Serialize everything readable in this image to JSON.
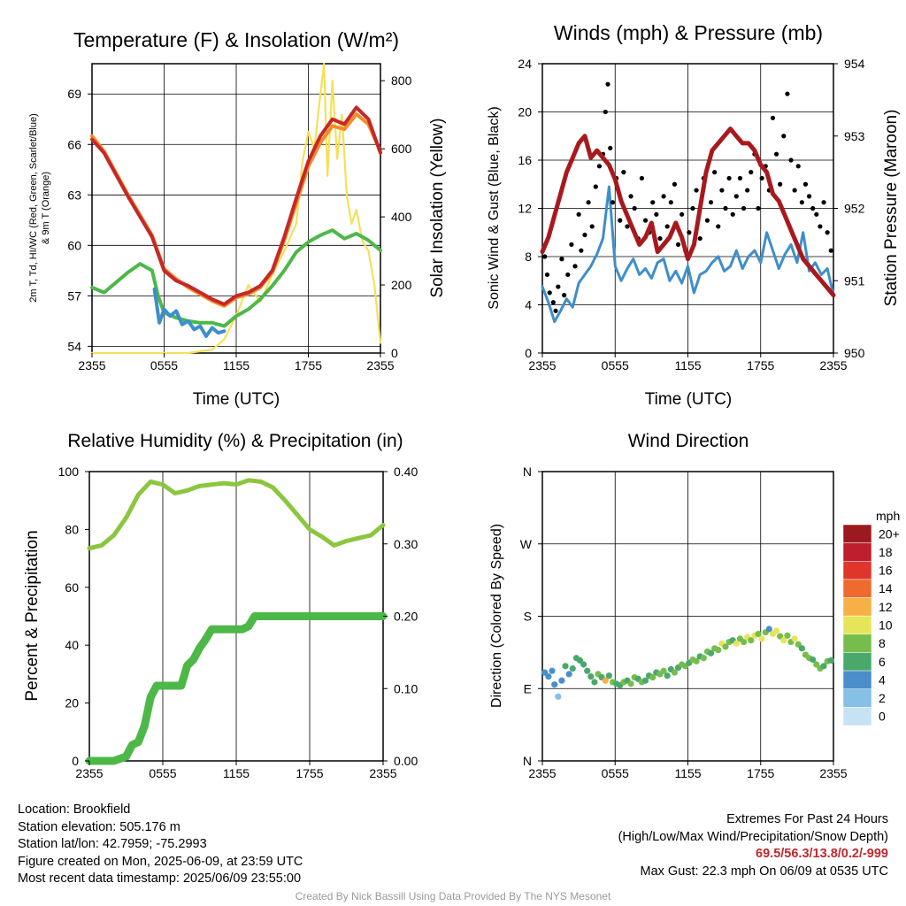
{
  "chart_data": [
    {
      "type": "line",
      "title": "Temperature (F) & Insolation (W/m²)",
      "xlabel": "Time (UTC)",
      "ylabel_line1": "2m T, Td, HI/WC (Red, Green, Scarlet/Blue)",
      "ylabel_line2": "& 9m T (Orange)",
      "y2label": "Solar Insolation (Yellow)",
      "xticks": [
        "2355",
        "0555",
        "1155",
        "1755",
        "2355"
      ],
      "ylim": [
        53.6,
        70.8
      ],
      "yticks": [
        54,
        57,
        60,
        63,
        66,
        69
      ],
      "y2lim": [
        0,
        850
      ],
      "y2ticks": [
        0,
        200,
        400,
        600,
        800
      ],
      "series": [
        {
          "color": "#c62828",
          "x": [
            0,
            1,
            2,
            3,
            4,
            5,
            6,
            7,
            8,
            9,
            10,
            11,
            12,
            13,
            14,
            15,
            16,
            17,
            18,
            19,
            20,
            21,
            22,
            23,
            24
          ],
          "values": [
            66.3,
            65.5,
            64.2,
            62.9,
            61.7,
            60.5,
            58.5,
            57.9,
            57.6,
            57.2,
            56.8,
            56.5,
            57.0,
            57.2,
            57.6,
            58.5,
            60.5,
            62.8,
            65.0,
            66.5,
            67.5,
            67.2,
            68.2,
            67.5,
            65.5
          ]
        },
        {
          "color": "#f28c28",
          "x": [
            0,
            1,
            2,
            3,
            4,
            5,
            6,
            7,
            8,
            9,
            10,
            11,
            12,
            13,
            14,
            15,
            16,
            17,
            18,
            19,
            20,
            21,
            22,
            23,
            24
          ],
          "values": [
            66.5,
            65.6,
            64.3,
            63.0,
            61.8,
            60.6,
            58.6,
            58.0,
            57.5,
            57.1,
            56.7,
            56.4,
            56.9,
            57.1,
            57.5,
            58.4,
            60.3,
            62.5,
            64.7,
            66.1,
            67.1,
            66.9,
            67.8,
            67.2,
            65.6
          ]
        },
        {
          "color": "#4db848",
          "x": [
            0,
            1,
            2,
            3,
            4,
            5,
            5.5,
            6,
            7,
            8,
            9,
            10,
            11,
            12,
            13,
            14,
            15,
            16,
            17,
            18,
            19,
            20,
            21,
            22,
            23,
            24
          ],
          "values": [
            57.5,
            57.2,
            57.8,
            58.4,
            58.9,
            58.5,
            57.0,
            56.0,
            55.7,
            55.5,
            55.4,
            55.4,
            55.2,
            55.8,
            56.2,
            56.8,
            57.6,
            58.5,
            59.6,
            60.2,
            60.6,
            60.9,
            60.4,
            60.7,
            60.3,
            59.7
          ]
        },
        {
          "color": "#3e8ecb",
          "x": [
            5.2,
            5.6,
            6,
            6.5,
            7,
            7.5,
            8,
            8.5,
            9,
            9.5,
            10,
            10.5,
            11
          ],
          "values": [
            57.4,
            55.4,
            56.2,
            55.8,
            56.1,
            55.3,
            55.5,
            55.0,
            55.2,
            54.6,
            55.1,
            54.8,
            54.9
          ]
        },
        {
          "color": "#f5e05a",
          "x": [
            0,
            8,
            10,
            11,
            12,
            13,
            14,
            15,
            16,
            17,
            17.5,
            18,
            18.5,
            19,
            19.3,
            19.6,
            20,
            20.4,
            20.8,
            21.2,
            21.6,
            22,
            22.5,
            23,
            23.5,
            24
          ],
          "values": [
            0,
            0,
            10,
            40,
            110,
            200,
            150,
            230,
            300,
            380,
            560,
            650,
            600,
            760,
            850,
            520,
            800,
            570,
            700,
            460,
            380,
            420,
            330,
            300,
            200,
            30
          ]
        }
      ]
    },
    {
      "type": "scatter",
      "title": "Winds (mph) & Pressure (mb)",
      "xlabel": "Time (UTC)",
      "ylabel": "Sonic Wind & Gust (Blue, Black)",
      "y2label": "Station Pressure (Maroon)",
      "xticks": [
        "2355",
        "0555",
        "1155",
        "1755",
        "2355"
      ],
      "ylim": [
        0,
        24
      ],
      "yticks": [
        0,
        4,
        8,
        12,
        16,
        20,
        24
      ],
      "y2lim": [
        950,
        954
      ],
      "y2ticks": [
        950,
        951,
        952,
        953,
        954
      ],
      "series": [
        {
          "color": "#3e8ecb",
          "x": [
            0,
            0.5,
            1,
            1.5,
            2,
            2.5,
            3,
            3.5,
            4,
            4.5,
            5,
            5.5,
            6,
            6.5,
            7,
            7.5,
            8,
            8.5,
            9,
            9.5,
            10,
            10.5,
            11,
            11.5,
            12,
            12.5,
            13,
            13.5,
            14,
            14.5,
            15,
            15.5,
            16,
            16.5,
            17,
            17.5,
            18,
            18.5,
            19,
            19.5,
            20,
            20.5,
            21,
            21.5,
            22,
            22.5,
            23,
            23.5,
            24
          ],
          "values": [
            5.5,
            4.2,
            2.6,
            3.5,
            4.5,
            3.8,
            5.8,
            6.5,
            7.2,
            8.2,
            9.5,
            13.8,
            7.2,
            6.0,
            7.0,
            7.8,
            6.5,
            7.0,
            6.2,
            7.5,
            7.8,
            6.0,
            6.8,
            5.8,
            7.2,
            5.0,
            6.5,
            6.8,
            7.5,
            8.0,
            6.8,
            7.2,
            8.5,
            7.0,
            8.0,
            8.5,
            7.5,
            10.0,
            8.5,
            7.0,
            8.2,
            9.0,
            7.5,
            10.0,
            6.8,
            7.5,
            6.5,
            7.0,
            4.8
          ]
        },
        {
          "color": "#000000",
          "x": [
            0.2,
            0.4,
            0.6,
            0.9,
            1.1,
            1.3,
            1.6,
            1.8,
            2.1,
            2.4,
            2.7,
            3.0,
            3.2,
            3.5,
            3.8,
            4.1,
            4.4,
            4.7,
            5.0,
            5.2,
            5.4,
            5.6,
            5.8,
            6.1,
            6.4,
            6.7,
            7.0,
            7.3,
            7.6,
            7.9,
            8.2,
            8.5,
            8.8,
            9.1,
            9.4,
            9.7,
            10.0,
            10.3,
            10.6,
            10.9,
            11.2,
            11.5,
            11.8,
            12.1,
            12.4,
            12.7,
            13.0,
            13.3,
            13.6,
            13.9,
            14.2,
            14.5,
            14.8,
            15.1,
            15.4,
            15.7,
            16.0,
            16.3,
            16.6,
            16.9,
            17.2,
            17.5,
            17.8,
            18.1,
            18.4,
            18.7,
            19.0,
            19.3,
            19.6,
            19.9,
            20.2,
            20.5,
            20.8,
            21.1,
            21.4,
            21.7,
            22.0,
            22.3,
            22.6,
            22.9,
            23.2,
            23.5,
            23.8
          ],
          "values": [
            8.0,
            6.5,
            5.0,
            4.2,
            3.5,
            5.5,
            7.8,
            4.8,
            6.5,
            9.0,
            7.2,
            11.5,
            8.5,
            9.8,
            12.5,
            10.5,
            13.8,
            15.5,
            16.5,
            20.0,
            22.3,
            17.0,
            12.5,
            14.5,
            11.0,
            15.0,
            10.5,
            13.0,
            12.0,
            9.5,
            14.5,
            11.0,
            10.0,
            12.5,
            11.5,
            9.5,
            13.0,
            10.5,
            12.5,
            14.0,
            9.0,
            11.5,
            8.5,
            10.0,
            12.0,
            13.5,
            9.5,
            14.5,
            11.0,
            12.5,
            15.0,
            10.5,
            13.5,
            12.0,
            14.5,
            11.5,
            13.0,
            14.5,
            12.0,
            13.5,
            15.0,
            16.5,
            12.0,
            14.5,
            15.5,
            13.5,
            19.5,
            16.5,
            14.0,
            18.0,
            21.5,
            16.0,
            13.5,
            15.5,
            12.5,
            14.0,
            13.0,
            12.0,
            11.5,
            10.5,
            12.5,
            10.0,
            8.5
          ]
        },
        {
          "color": "#a8191e",
          "x": [
            0,
            0.5,
            1,
            1.5,
            2,
            2.5,
            3,
            3.5,
            4,
            4.5,
            5,
            5.5,
            6,
            6.5,
            7,
            7.5,
            8,
            8.5,
            9,
            9.5,
            10,
            10.5,
            11,
            11.5,
            12,
            12.5,
            13,
            13.5,
            14,
            14.5,
            15,
            15.5,
            16,
            16.5,
            17,
            17.5,
            18,
            18.5,
            19,
            19.5,
            20,
            20.5,
            21,
            21.5,
            22,
            22.5,
            23,
            23.5,
            24
          ],
          "values": [
            951.4,
            951.6,
            951.9,
            952.2,
            952.5,
            952.7,
            952.9,
            953.0,
            952.7,
            952.8,
            952.7,
            952.6,
            952.4,
            952.1,
            951.9,
            951.7,
            951.5,
            951.6,
            951.8,
            951.4,
            951.5,
            951.6,
            951.8,
            951.6,
            951.3,
            951.5,
            952.0,
            952.5,
            952.8,
            952.9,
            953.0,
            953.1,
            953.0,
            952.9,
            952.9,
            952.8,
            952.6,
            952.5,
            952.2,
            952.1,
            951.9,
            951.7,
            951.5,
            951.3,
            951.2,
            951.1,
            951.0,
            950.9,
            950.8
          ]
        }
      ]
    },
    {
      "type": "line",
      "title": "Relative Humidity (%) & Precipitation (in)",
      "ylabel": "Percent & Precipitation",
      "xticks": [
        "2355",
        "0555",
        "1155",
        "1755",
        "2355"
      ],
      "ylim": [
        0,
        100
      ],
      "yticks": [
        0,
        20,
        40,
        60,
        80,
        100
      ],
      "y2lim": [
        0,
        0.4
      ],
      "y2ticks": [
        "0.00",
        "0.10",
        "0.20",
        "0.30",
        "0.40"
      ],
      "series": [
        {
          "color": "#8cc63f",
          "x": [
            0,
            1,
            2,
            3,
            4,
            5,
            6,
            7,
            8,
            9,
            10,
            11,
            12,
            13,
            14,
            15,
            16,
            17,
            18,
            19,
            20,
            21,
            22,
            23,
            24
          ],
          "values": [
            73.5,
            74.5,
            78.0,
            84.0,
            92.0,
            96.5,
            95.5,
            92.5,
            93.5,
            95.0,
            95.5,
            96.0,
            95.5,
            97.0,
            96.5,
            94.5,
            90.0,
            85.0,
            80.0,
            77.5,
            74.5,
            76.0,
            77.0,
            78.0,
            81.5
          ]
        },
        {
          "color": "#4db848",
          "x": [
            0,
            1,
            2,
            3,
            3.5,
            4,
            4.5,
            5,
            5.5,
            6,
            6.5,
            7,
            7.5,
            8,
            8.5,
            9,
            9.5,
            10,
            10.5,
            11,
            11.5,
            12,
            12.5,
            13,
            13.5,
            14,
            16,
            18,
            20,
            22,
            24
          ],
          "values": [
            0,
            0,
            0,
            1.5,
            5.5,
            6.5,
            12.0,
            22.0,
            26.0,
            26.0,
            26.0,
            26.0,
            26.0,
            33.0,
            35.0,
            39.0,
            42.0,
            45.5,
            45.5,
            45.5,
            45.5,
            45.5,
            45.5,
            46.5,
            50.0,
            50.0,
            50.0,
            50.0,
            50.0,
            50.0,
            50.0
          ]
        }
      ]
    },
    {
      "type": "scatter",
      "title": "Wind Direction",
      "ylabel": "Direction (Colored By Speed)",
      "xticks": [
        "2355",
        "0555",
        "1155",
        "1755",
        "2355"
      ],
      "yticks": [
        "N",
        "E",
        "S",
        "W",
        "N"
      ],
      "ylim": [
        0,
        360
      ],
      "colorbar_title": "mph",
      "colorbar_labels": [
        "0",
        "2",
        "4",
        "6",
        "8",
        "10",
        "12",
        "14",
        "16",
        "18",
        "20+"
      ],
      "colorbar_colors": [
        "#c5e3f4",
        "#86c0e4",
        "#4a8fcb",
        "#4aa86b",
        "#76bd4c",
        "#e6e55a",
        "#f6b045",
        "#ef6b2d",
        "#e0352b",
        "#be1e2d",
        "#9c1a1f"
      ],
      "x": [
        0.2,
        0.5,
        0.8,
        1.0,
        1.3,
        1.6,
        1.9,
        2.2,
        2.5,
        2.8,
        3.1,
        3.4,
        3.7,
        4.0,
        4.3,
        4.6,
        4.9,
        5.2,
        5.5,
        5.8,
        6.1,
        6.4,
        6.7,
        7.0,
        7.3,
        7.6,
        7.9,
        8.2,
        8.5,
        8.8,
        9.1,
        9.4,
        9.7,
        10.0,
        10.3,
        10.6,
        10.9,
        11.2,
        11.5,
        11.8,
        12.1,
        12.4,
        12.7,
        13.0,
        13.3,
        13.6,
        13.9,
        14.2,
        14.5,
        14.8,
        15.1,
        15.4,
        15.7,
        16.0,
        16.3,
        16.6,
        16.9,
        17.2,
        17.5,
        17.8,
        18.1,
        18.4,
        18.7,
        19.0,
        19.3,
        19.6,
        19.9,
        20.2,
        20.5,
        20.8,
        21.1,
        21.4,
        21.7,
        22.0,
        22.3,
        22.6,
        22.9,
        23.2,
        23.5,
        23.8
      ],
      "values": [
        110,
        105,
        112,
        95,
        80,
        100,
        118,
        108,
        115,
        128,
        125,
        120,
        112,
        105,
        98,
        108,
        104,
        100,
        106,
        98,
        96,
        94,
        98,
        100,
        96,
        104,
        102,
        98,
        100,
        106,
        104,
        110,
        108,
        112,
        106,
        114,
        110,
        116,
        120,
        118,
        122,
        126,
        124,
        130,
        128,
        136,
        134,
        140,
        138,
        146,
        142,
        148,
        150,
        146,
        152,
        148,
        154,
        150,
        156,
        158,
        152,
        160,
        164,
        158,
        162,
        155,
        150,
        156,
        148,
        152,
        145,
        140,
        132,
        128,
        126,
        120,
        115,
        118,
        124,
        125
      ],
      "speeds": [
        4,
        4,
        3,
        4,
        2,
        3,
        5,
        4,
        5,
        6,
        5,
        6,
        5,
        6,
        5,
        7,
        6,
        11,
        6,
        7,
        6,
        5,
        7,
        6,
        8,
        7,
        6,
        7,
        6,
        5,
        7,
        6,
        8,
        7,
        5,
        6,
        7,
        6,
        7,
        8,
        6,
        7,
        8,
        6,
        7,
        8,
        6,
        7,
        8,
        9,
        7,
        8,
        6,
        9,
        8,
        7,
        9,
        8,
        10,
        8,
        9,
        8,
        4,
        10,
        9,
        8,
        10,
        8,
        7,
        9,
        8,
        6,
        7,
        8,
        6,
        7,
        8,
        6,
        7,
        5
      ]
    }
  ],
  "location_text": "Location: Brookfield",
  "elevation_text": "Station elevation: 505.176 m",
  "latlon_text": "Station lat/lon: 42.7959; -75.2993",
  "created_text": "Figure created on Mon, 2025-06-09, at 23:59 UTC",
  "recent_text": "Most recent data timestamp: 2025/06/09 23:55:00",
  "extremes_title": "Extremes For Past 24 Hours",
  "extremes_legend": "(High/Low/Max Wind/Precipitation/Snow Depth)",
  "extremes_values": "69.5/56.3/13.8/0.2/-999",
  "max_gust_text": "Max Gust: 22.3 mph On 06/09 at 0535 UTC",
  "credit_text": "Created By Nick Bassill Using Data Provided By The NYS Mesonet"
}
